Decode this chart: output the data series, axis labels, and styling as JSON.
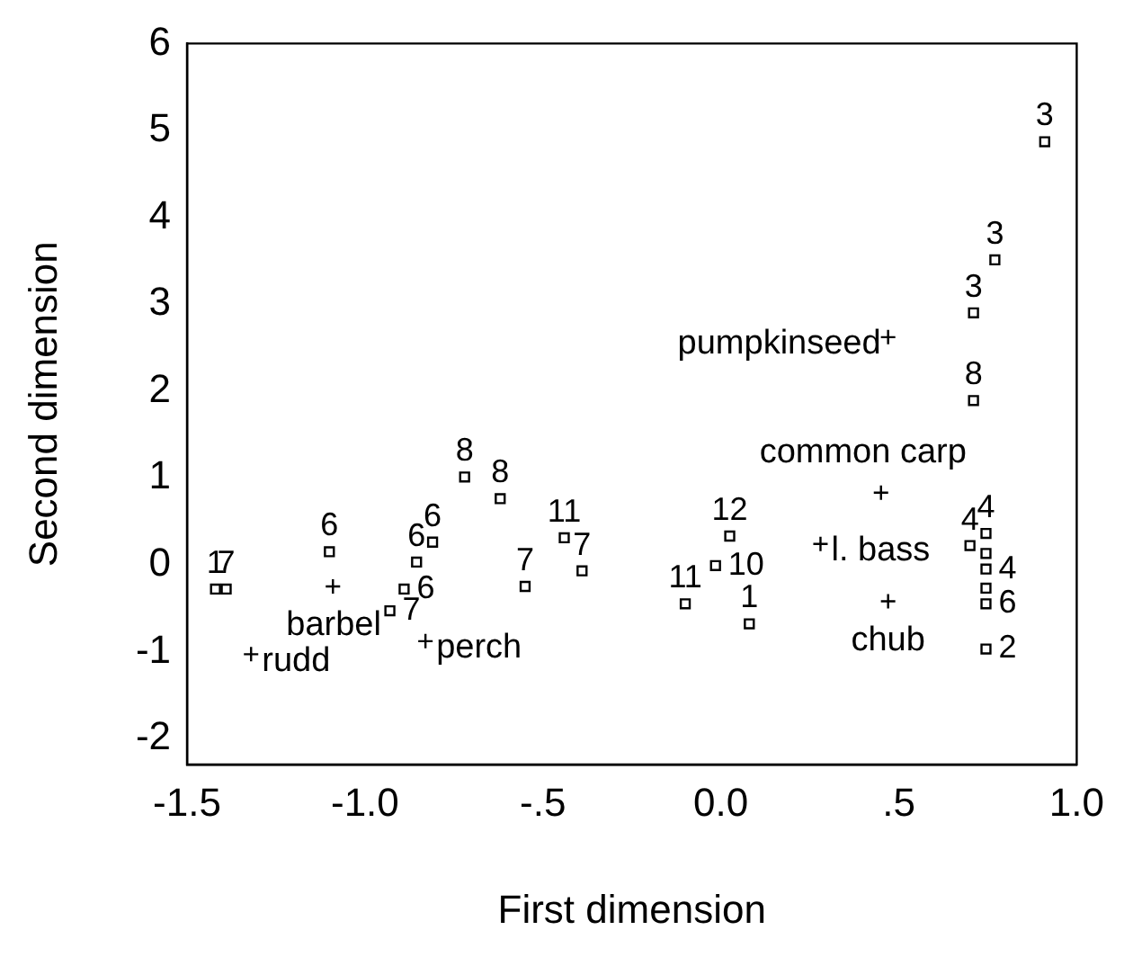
{
  "chart_data": {
    "type": "scatter",
    "xlabel": "First dimension",
    "ylabel": "Second dimension",
    "xlim": [
      -1.5,
      1.0
    ],
    "xticks": [
      {
        "value": -1.5,
        "label": "-1.5"
      },
      {
        "value": -1.0,
        "label": "-1.0"
      },
      {
        "value": -0.5,
        "label": "-.5"
      },
      {
        "value": 0,
        "label": "0.0"
      },
      {
        "value": 0.5,
        "label": ".5"
      },
      {
        "value": 1.0,
        "label": "1.0"
      }
    ],
    "ylim": [
      -2.3,
      6
    ],
    "yticks": [
      -2,
      -1,
      0,
      1,
      2,
      3,
      4,
      5,
      6
    ],
    "grid": false,
    "legend": false,
    "series": [
      {
        "color": "#000000",
        "marker": "square",
        "x": [
          -1.42,
          -1.39,
          -1.1,
          -0.93,
          -0.89,
          -0.855,
          -0.81,
          -0.72,
          -0.62,
          -0.55,
          -0.44,
          -0.39,
          -0.1,
          -0.015,
          0.025,
          0.08,
          0.7,
          0.745,
          0.745,
          0.745,
          0.745,
          0.745,
          0.745,
          0.91,
          0.77,
          0.71,
          0.71
        ],
        "values": [
          -0.28,
          -0.28,
          0.15,
          -0.53,
          -0.28,
          0.03,
          0.26,
          1.01,
          0.76,
          -0.25,
          0.31,
          -0.07,
          -0.45,
          -0.01,
          0.33,
          -0.68,
          0.22,
          0.36,
          0.13,
          -0.05,
          -0.27,
          -0.45,
          -0.97,
          4.87,
          3.51,
          2.9,
          1.89
        ]
      },
      {
        "color": "#000000",
        "marker": "cross",
        "x": [
          -1.09,
          -1.32,
          -0.83,
          0.47,
          0.45,
          0.28,
          0.47
        ],
        "values": [
          -0.25,
          -1.03,
          -0.88,
          2.62,
          0.83,
          0.24,
          -0.42
        ]
      }
    ],
    "annotations": [
      {
        "text": "1",
        "x": -1.42,
        "y": -0.28
      },
      {
        "text": "7",
        "x": -1.39,
        "y": -0.28
      },
      {
        "text": "6",
        "x": -1.1,
        "y": 0.15
      },
      {
        "text": "7",
        "x": -0.93,
        "y": -0.53
      },
      {
        "text": "6",
        "x": -0.89,
        "y": -0.28
      },
      {
        "text": "6",
        "x": -0.855,
        "y": 0.03
      },
      {
        "text": "6",
        "x": -0.81,
        "y": 0.26
      },
      {
        "text": "8",
        "x": -0.72,
        "y": 1.01
      },
      {
        "text": "8",
        "x": -0.62,
        "y": 0.76
      },
      {
        "text": "7",
        "x": -0.55,
        "y": -0.25
      },
      {
        "text": "11",
        "x": -0.44,
        "y": 0.31
      },
      {
        "text": "7",
        "x": -0.39,
        "y": -0.07
      },
      {
        "text": "11",
        "x": -0.1,
        "y": -0.45
      },
      {
        "text": "10",
        "x": -0.015,
        "y": -0.01
      },
      {
        "text": "12",
        "x": 0.025,
        "y": 0.33
      },
      {
        "text": "1",
        "x": 0.08,
        "y": -0.68
      },
      {
        "text": "4",
        "x": 0.7,
        "y": 0.22
      },
      {
        "text": "4",
        "x": 0.745,
        "y": 0.36
      },
      {
        "text": "4",
        "x": 0.745,
        "y": -0.05
      },
      {
        "text": "6",
        "x": 0.745,
        "y": -0.45
      },
      {
        "text": "2",
        "x": 0.745,
        "y": -0.97
      },
      {
        "text": "3",
        "x": 0.91,
        "y": 4.87
      },
      {
        "text": "3",
        "x": 0.77,
        "y": 3.51
      },
      {
        "text": "3",
        "x": 0.71,
        "y": 2.9
      },
      {
        "text": "8",
        "x": 0.71,
        "y": 1.89
      },
      {
        "text": "barbel",
        "x": -1.09,
        "y": -0.25
      },
      {
        "text": "rudd",
        "x": -1.32,
        "y": -1.03
      },
      {
        "text": "perch",
        "x": -0.83,
        "y": -0.88
      },
      {
        "text": "pumpkinseed",
        "x": 0.47,
        "y": 2.62
      },
      {
        "text": "common carp",
        "x": 0.45,
        "y": 0.83
      },
      {
        "text": "l. bass",
        "x": 0.28,
        "y": 0.24
      },
      {
        "text": "chub",
        "x": 0.47,
        "y": -0.42
      }
    ]
  }
}
